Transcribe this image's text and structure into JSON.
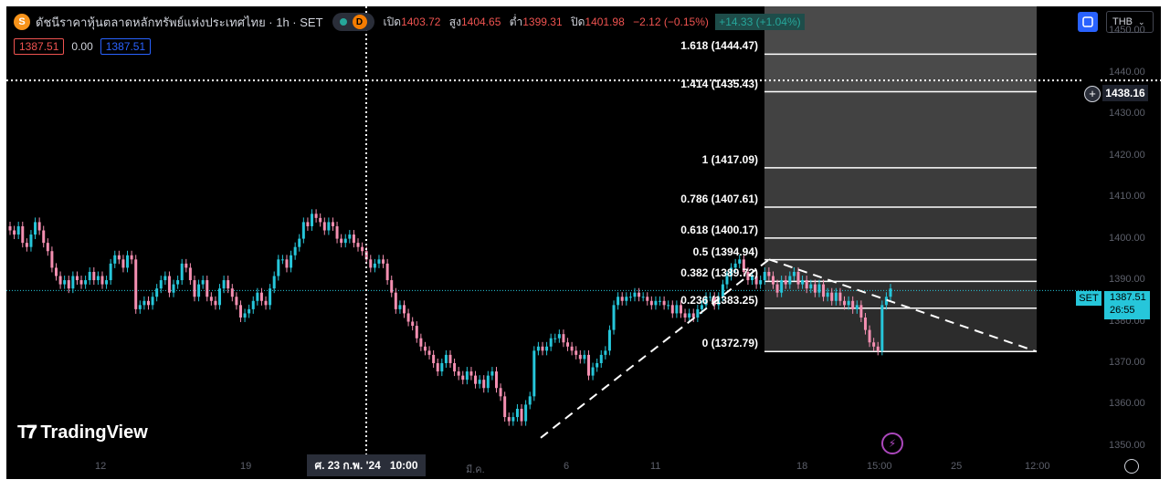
{
  "legend": {
    "symbol_icon": "set-index-icon",
    "symbol_letter": "S",
    "title": "ดัชนีราคาหุ้นตลาดหลักทรัพย์แห่งประเทศไทย · 1h · SET",
    "d_badge": "D",
    "open_label": "เปิด",
    "open": "1403.72",
    "high_label": "สูง",
    "high": "1404.65",
    "low_label": "ต่ำ",
    "low": "1399.31",
    "close_label": "ปิด",
    "close": "1401.98",
    "change": "−2.12 (−0.15%)",
    "change2": "+14.33 (+1.04%)",
    "bid": "1387.51",
    "spread": "0.00",
    "ask": "1387.51"
  },
  "toolbar": {
    "currency": "THB"
  },
  "crosshair": {
    "price": "1438.16",
    "time": "ศ. 23 ก.พ. '24   10:00"
  },
  "last_price": {
    "symbol": "SET",
    "price": "1387.51",
    "countdown": "26:55"
  },
  "branding": {
    "name": "TradingView"
  },
  "colors": {
    "up": "#26c6da",
    "down": "#f48fb1",
    "background": "#000000",
    "fib_zone": "#3a3a3a"
  },
  "chart_data": {
    "type": "candlestick",
    "ylim": [
      1348,
      1456
    ],
    "y_ticks": [
      "1450.00",
      "1440.00",
      "1430.00",
      "1420.00",
      "1410.00",
      "1400.00",
      "1390.00",
      "1380.00",
      "1370.00",
      "1360.00",
      "1350.00"
    ],
    "x_ticks": [
      "12",
      "19",
      "มี.ค.",
      "6",
      "11",
      "18",
      "15:00",
      "25",
      "12:00"
    ],
    "fibonacci": [
      {
        "level": "1.618",
        "price": 1444.47,
        "label": "1.618 (1444.47)"
      },
      {
        "level": "1.414",
        "price": 1435.43,
        "label": "1.414 (1435.43)"
      },
      {
        "level": "1",
        "price": 1417.09,
        "label": "1 (1417.09)"
      },
      {
        "level": "0.786",
        "price": 1407.61,
        "label": "0.786 (1407.61)"
      },
      {
        "level": "0.618",
        "price": 1400.17,
        "label": "0.618 (1400.17)"
      },
      {
        "level": "0.5",
        "price": 1394.94,
        "label": "0.5 (1394.94)"
      },
      {
        "level": "0.382",
        "price": 1389.72,
        "label": "0.382 (1389.72)"
      },
      {
        "level": "0.236",
        "price": 1383.25,
        "label": "0.236 (1383.25)"
      },
      {
        "level": "0",
        "price": 1372.79,
        "label": "0 (1372.79)"
      }
    ],
    "close_series": [
      1402,
      1401,
      1403,
      1399,
      1398,
      1401,
      1404,
      1402,
      1399,
      1397,
      1393,
      1391,
      1389,
      1390,
      1388,
      1391,
      1390,
      1389,
      1390,
      1392,
      1390,
      1391,
      1389,
      1390,
      1394,
      1396,
      1395,
      1393,
      1396,
      1395,
      1383,
      1384,
      1385,
      1384,
      1386,
      1388,
      1390,
      1391,
      1387,
      1389,
      1390,
      1394,
      1393,
      1390,
      1386,
      1389,
      1390,
      1386,
      1385,
      1384,
      1388,
      1390,
      1388,
      1386,
      1384,
      1381,
      1382,
      1383,
      1385,
      1387,
      1385,
      1384,
      1388,
      1391,
      1395,
      1395,
      1393,
      1396,
      1398,
      1400,
      1404,
      1403,
      1406,
      1405,
      1404,
      1402,
      1404,
      1403,
      1400,
      1399,
      1400,
      1401,
      1399,
      1398,
      1397,
      1395,
      1393,
      1394,
      1395,
      1394,
      1390,
      1387,
      1383,
      1384,
      1382,
      1380,
      1379,
      1376,
      1374,
      1373,
      1372,
      1370,
      1368,
      1370,
      1372,
      1370,
      1368,
      1367,
      1366,
      1368,
      1367,
      1365,
      1366,
      1364,
      1367,
      1368,
      1364,
      1362,
      1357,
      1356,
      1357,
      1359,
      1356,
      1360,
      1362,
      1373,
      1374,
      1373,
      1374,
      1376,
      1376,
      1377,
      1375,
      1374,
      1373,
      1372,
      1371,
      1372,
      1367,
      1369,
      1370,
      1372,
      1373,
      1378,
      1384,
      1386,
      1385,
      1386,
      1386,
      1387,
      1386,
      1386,
      1385,
      1384,
      1385,
      1385,
      1384,
      1384,
      1382,
      1384,
      1382,
      1381,
      1382,
      1381,
      1383,
      1384,
      1386,
      1386,
      1384,
      1386,
      1389,
      1391,
      1393,
      1394,
      1395,
      1392,
      1390,
      1391,
      1389,
      1390,
      1392,
      1391,
      1389,
      1387,
      1390,
      1389,
      1391,
      1392,
      1389,
      1390,
      1388,
      1389,
      1387,
      1389,
      1386,
      1387,
      1385,
      1387,
      1385,
      1384,
      1385,
      1383,
      1384,
      1381,
      1378,
      1375,
      1374,
      1373,
      1384,
      1386,
      1388
    ]
  }
}
